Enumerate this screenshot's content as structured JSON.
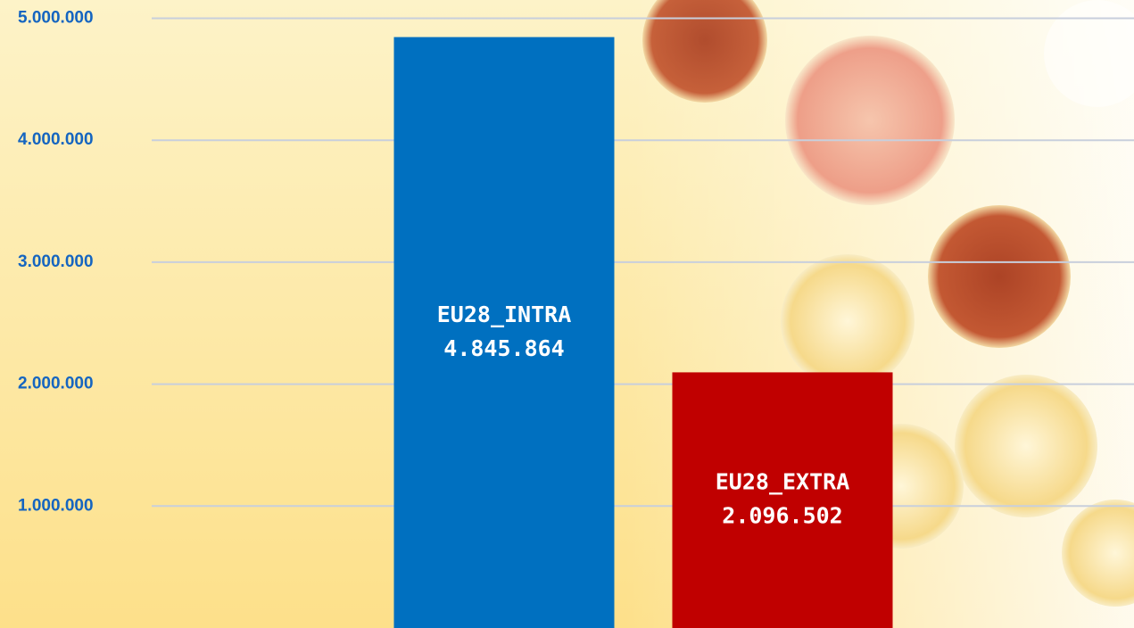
{
  "chart_data": {
    "type": "bar",
    "categories": [
      "EU28_INTRA",
      "EU28_EXTRA"
    ],
    "values": [
      4845864,
      2096502
    ],
    "value_labels": [
      "4.845.864",
      "2.096.502"
    ],
    "colors": [
      "#0070c0",
      "#c00000"
    ],
    "ylim": [
      0,
      5150000
    ],
    "yticks": [
      {
        "value": 1000000,
        "label": "1.000.000"
      },
      {
        "value": 2000000,
        "label": "2.000.000"
      },
      {
        "value": 3000000,
        "label": "3.000.000"
      },
      {
        "value": 4000000,
        "label": "4.000.000"
      },
      {
        "value": 5000000,
        "label": "5.000.000"
      }
    ],
    "grid": true
  }
}
